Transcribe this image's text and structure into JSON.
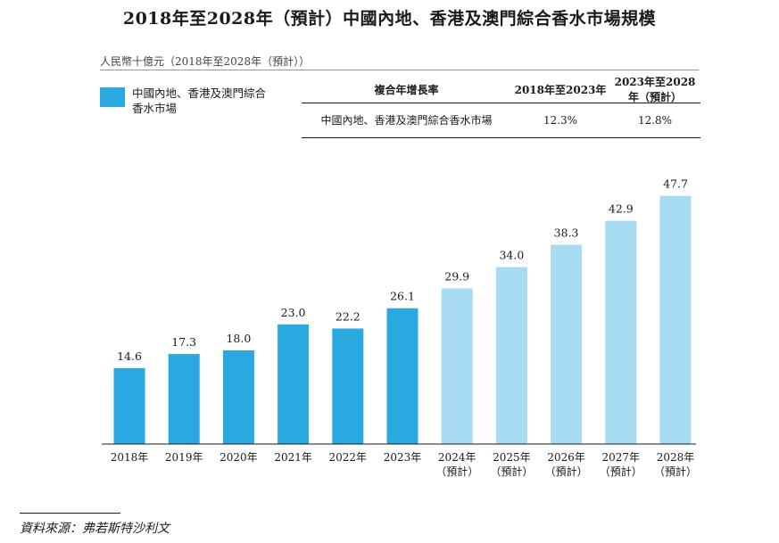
{
  "chart_data": {
    "type": "bar",
    "title": "2018年至2028年（預計）中國內地、香港及澳門綜合香水市場規模",
    "ylabel": "人民幣十億元（2018年至2028年（預計））",
    "categories": [
      [
        "2018年"
      ],
      [
        "2019年"
      ],
      [
        "2020年"
      ],
      [
        "2021年"
      ],
      [
        "2022年"
      ],
      [
        "2023年"
      ],
      [
        "2024年",
        "（預計）"
      ],
      [
        "2025年",
        "（預計）"
      ],
      [
        "2026年",
        "（預計）"
      ],
      [
        "2027年",
        "（預計）"
      ],
      [
        "2028年",
        "（預計）"
      ]
    ],
    "values": [
      14.6,
      17.3,
      18.0,
      23.0,
      22.2,
      26.1,
      29.9,
      34.0,
      38.3,
      42.9,
      47.7
    ],
    "value_labels": [
      "14.6",
      "17.3",
      "18.0",
      "23.0",
      "22.2",
      "26.1",
      "29.9",
      "34.0",
      "38.3",
      "42.9",
      "47.7"
    ],
    "forecast": [
      false,
      false,
      false,
      false,
      false,
      false,
      true,
      true,
      true,
      true,
      true
    ],
    "ylim": [
      0,
      50
    ],
    "legend": [
      {
        "name": "中國內地、香港及澳門綜合香水市場",
        "color": "#29a9e0"
      }
    ],
    "colors": {
      "actual": "#29a9e0",
      "forecast": "#a6dbf1"
    }
  },
  "cagr_table": {
    "header": [
      "複合年增長率",
      "2018年至2023年",
      "2023年至2028年（預計）"
    ],
    "row": {
      "label": "中國內地、香港及澳門綜合香水市場",
      "values": [
        "12.3%",
        "12.8%"
      ]
    }
  },
  "source": "資料來源：弗若斯特沙利文"
}
